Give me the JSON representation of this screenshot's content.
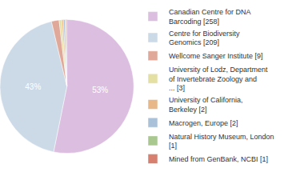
{
  "chart_data": {
    "type": "pie",
    "categories": [
      "Canadian Centre for DNA Barcoding [258]",
      "Centre for Biodiversity Genomics [209]",
      "Wellcome Sanger Institute [9]",
      "University of Lodz, Department of Invertebrate Zoology and ... [3]",
      "University of California, Berkeley [2]",
      "Macrogen, Europe [2]",
      "Natural History Museum, London [1]",
      "Mined from GenBank, NCBI [1]"
    ],
    "values": [
      53.2,
      43.1,
      1.86,
      0.62,
      0.41,
      0.41,
      0.21,
      0.21
    ],
    "value_labels": [
      "53%",
      "43%",
      null,
      null,
      null,
      null,
      null,
      null
    ],
    "colors": [
      "#dcbfe0",
      "#ccd9e6",
      "#e0a898",
      "#e4e0a4",
      "#e8b888",
      "#a9c1d9",
      "#a8c890",
      "#d88070"
    ],
    "data_labels": true,
    "legend": "right"
  }
}
